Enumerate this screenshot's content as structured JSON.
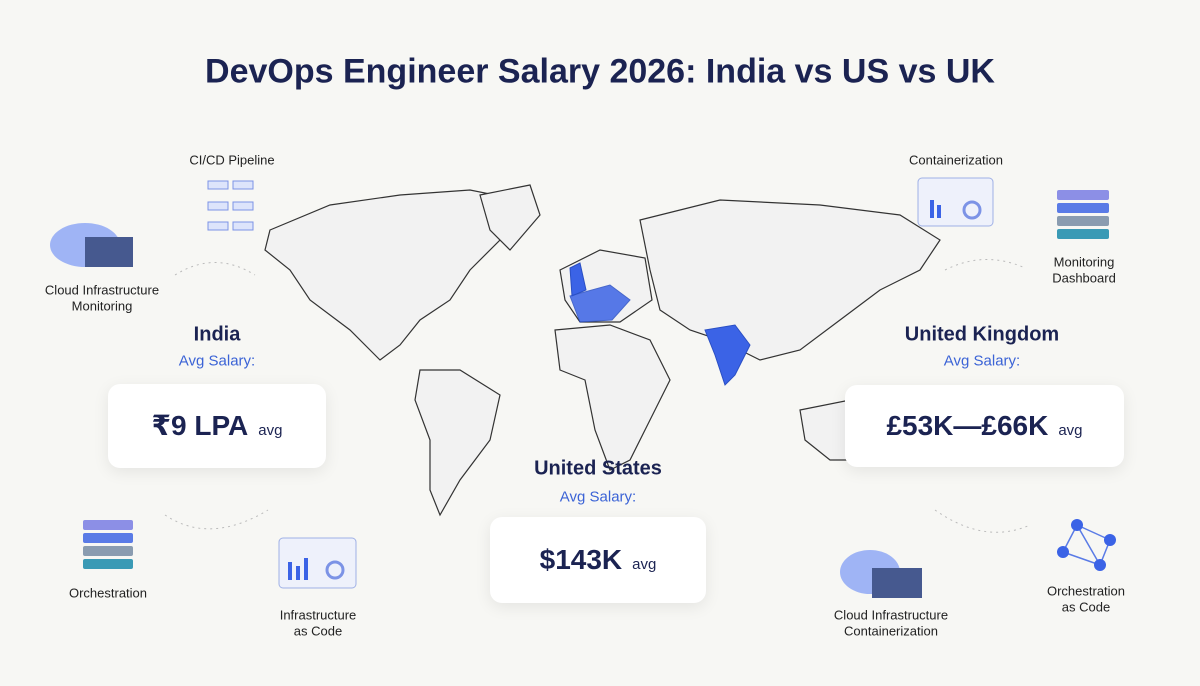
{
  "header": {
    "title": "DevOps Engineer Salary 2026: India vs US vs UK"
  },
  "regions": [
    {
      "name": "India",
      "label": "Avg Salary:",
      "value": "₹9 LPA",
      "suffix": "avg"
    },
    {
      "name": "United States",
      "label": "Avg Salary:",
      "value": "$143K",
      "suffix": "avg"
    },
    {
      "name": "United Kingdom",
      "label": "Avg Salary:",
      "value": "£53K—£66K",
      "suffix": "avg"
    }
  ],
  "icons": [
    {
      "lines": [
        "CI/CD Pipeline"
      ]
    },
    {
      "lines": [
        "Cloud Infrastructure",
        "Monitoring"
      ]
    },
    {
      "lines": [
        "Containerization"
      ]
    },
    {
      "lines": [
        "Monitoring",
        "Dashboard"
      ]
    },
    {
      "lines": [
        "Orchestration"
      ]
    },
    {
      "lines": [
        "Infrastructure",
        "as Code"
      ]
    },
    {
      "lines": [
        "Cloud Infrastructure",
        "Containerization"
      ]
    },
    {
      "lines": [
        "Orchestration",
        "as Code"
      ]
    }
  ]
}
